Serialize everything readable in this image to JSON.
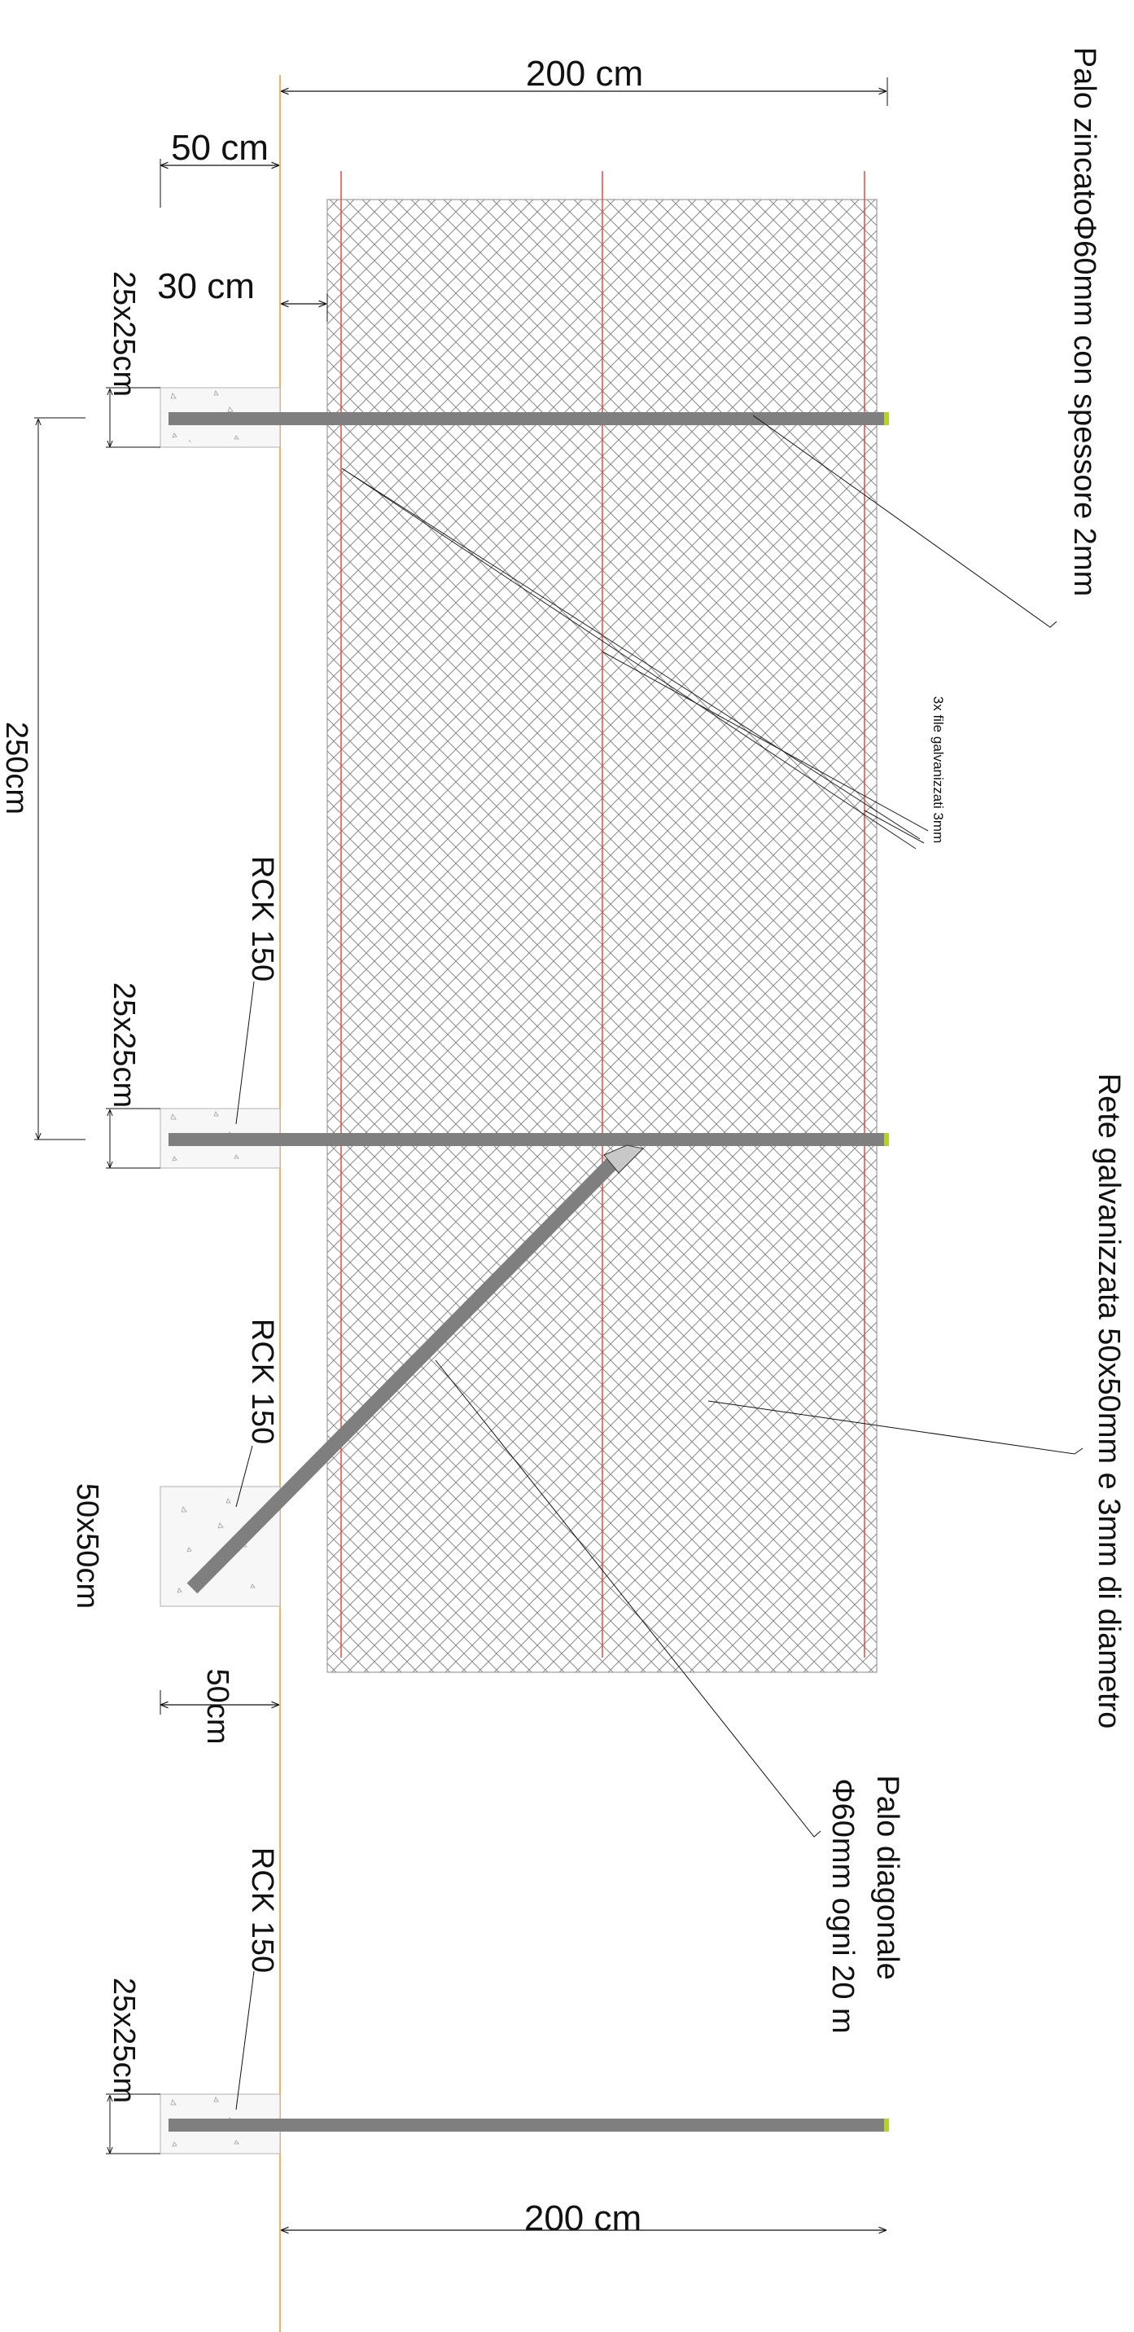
{
  "labels": {
    "dim_top": "200 cm",
    "dim_bottom": "200 cm",
    "dim_50cm_top": "50 cm",
    "dim_30cm": "30 cm",
    "dim_50cm_bottom": "50cm",
    "dim_250cm": "250cm",
    "footing_1": "25x25cm",
    "footing_2": "25x25cm",
    "footing_3": "50x50cm",
    "footing_4": "25x25cm",
    "rck_1": "RCK 150",
    "rck_2": "RCK 150",
    "rck_3": "RCK 150",
    "palo_zincato": "Palo zincatoΦ60mm con spessore 2mm",
    "fili": "3x file galvanizzati 3mm",
    "rete": "Rete galvanizzata 50x50mm e 3mm di diametro",
    "diagonale_line1": "Palo diagonale",
    "diagonale_line2": "Φ60mm ogni 20 m"
  },
  "colors": {
    "ground_line": "#f4b25c",
    "wire": "#e8483c",
    "mesh": "#8a8a8a",
    "post": "#7f7f7f",
    "post_tip": "#b6d22a",
    "concrete": "#bdbdbd",
    "dim_line": "#111111"
  }
}
